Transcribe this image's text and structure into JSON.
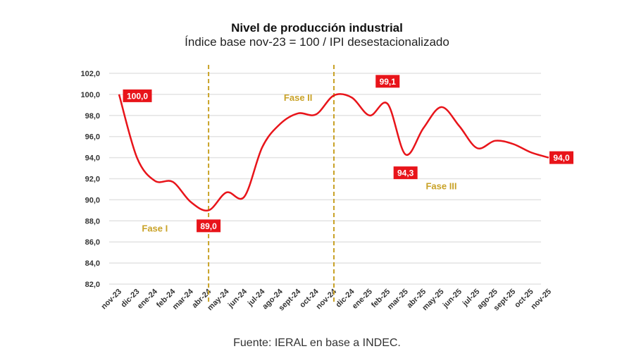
{
  "chart_data": {
    "type": "line",
    "title": "Nivel de producción industrial",
    "subtitle": "Índice base nov-23 = 100 / IPI desestacionalizado",
    "xlabel": "",
    "ylabel": "",
    "ylim": [
      82,
      102
    ],
    "y_ticks": [
      "82,0",
      "84,0",
      "86,0",
      "88,0",
      "90,0",
      "92,0",
      "94,0",
      "96,0",
      "98,0",
      "100,0",
      "102,0"
    ],
    "grid": true,
    "categories": [
      "nov-23",
      "dic-23",
      "ene-24",
      "feb-24",
      "mar-24",
      "abr-24",
      "may-24",
      "jun-24",
      "jul-24",
      "ago-24",
      "sept-24",
      "oct-24",
      "nov-24",
      "dic-24",
      "ene-25",
      "feb-25",
      "mar-25",
      "abr-25",
      "may-25",
      "jun-25",
      "jul-25",
      "ago-25",
      "sept-25",
      "oct-25",
      "nov-25"
    ],
    "series": [
      {
        "values": [
          100.0,
          94.0,
          91.8,
          91.7,
          89.8,
          89.0,
          90.7,
          90.3,
          95.0,
          97.2,
          98.2,
          98.1,
          99.9,
          99.7,
          98.0,
          99.1,
          94.3,
          96.8,
          98.8,
          97.0,
          94.9,
          95.6,
          95.3,
          94.5,
          94.0
        ],
        "color": "#e8141a"
      }
    ],
    "data_labels": [
      {
        "category": "nov-23",
        "text": "100,0"
      },
      {
        "category": "abr-24",
        "text": "89,0"
      },
      {
        "category": "feb-25",
        "text": "99,1"
      },
      {
        "category": "mar-25",
        "text": "94,3"
      },
      {
        "category": "nov-25",
        "text": "94,0"
      }
    ],
    "phase_dividers": [
      "abr-24",
      "nov-24"
    ],
    "phases": [
      {
        "text": "Fase I",
        "category": "ene-24",
        "y": 87.0
      },
      {
        "text": "Fase II",
        "category": "sept-24",
        "y": 99.4
      },
      {
        "text": "Fase III",
        "category": "may-25",
        "y": 91.0
      }
    ],
    "divider_color": "#c9a227",
    "label_color": "#e8141a"
  },
  "source": "Fuente: IERAL en base a INDEC."
}
